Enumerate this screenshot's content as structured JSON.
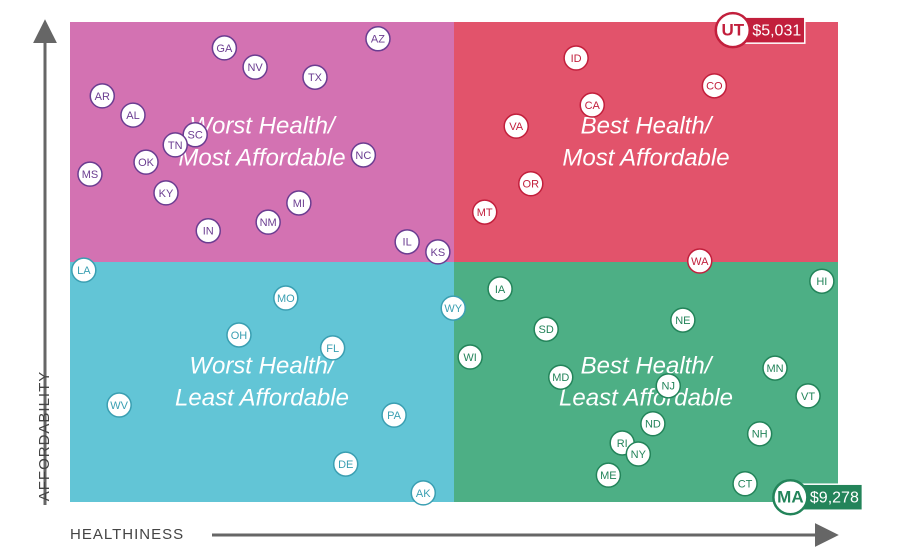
{
  "chart_data": {
    "type": "scatter",
    "x_label": "HEALTHINESS",
    "y_label": "AFFORDABILITY",
    "xlim": [
      0,
      100
    ],
    "ylim": [
      0,
      100
    ],
    "quadrants": [
      {
        "lines": [
          "Worst Health/",
          "Most Affordable"
        ],
        "color": "#d372b2",
        "mark_color": "#6b3d91"
      },
      {
        "lines": [
          "Best Health/",
          "Most Affordable"
        ],
        "color": "#e2536b",
        "mark_color": "#c21f3c"
      },
      {
        "lines": [
          "Worst Health/",
          "Least Affordable"
        ],
        "color": "#62c5d6",
        "mark_color": "#3a9fb2"
      },
      {
        "lines": [
          "Best Health/",
          "Least Affordable"
        ],
        "color": "#4daf85",
        "mark_color": "#23845a"
      }
    ],
    "categories": [
      "GA",
      "NV",
      "AZ",
      "TX",
      "AR",
      "AL",
      "SC",
      "TN",
      "OK",
      "NC",
      "MS",
      "KY",
      "MI",
      "NM",
      "IN",
      "IL",
      "KS",
      "LA",
      "MO",
      "WY",
      "OH",
      "FL",
      "WI",
      "WV",
      "PA",
      "DE",
      "AK",
      "ID",
      "CO",
      "CA",
      "VA",
      "OR",
      "MT",
      "UT",
      "WA",
      "IA",
      "HI",
      "SD",
      "NE",
      "MN",
      "MD",
      "NJ",
      "VT",
      "ND",
      "NH",
      "RI",
      "NY",
      "ME",
      "CT",
      "MA"
    ],
    "x": [
      20.1,
      24.1,
      40.1,
      31.9,
      4.2,
      8.2,
      16.3,
      13.7,
      9.9,
      38.2,
      2.6,
      12.5,
      29.8,
      25.8,
      18.0,
      43.9,
      47.9,
      1.8,
      28.1,
      49.9,
      22.0,
      34.2,
      52.1,
      6.4,
      42.2,
      35.9,
      46.0,
      65.9,
      83.9,
      68.0,
      58.1,
      60.0,
      54.0,
      86.3,
      82.0,
      56.0,
      97.9,
      62.0,
      79.8,
      91.8,
      63.9,
      77.9,
      96.1,
      75.9,
      89.8,
      71.9,
      74.0,
      70.1,
      87.9,
      93.8
    ],
    "values": [
      94.6,
      90.6,
      96.5,
      88.5,
      84.6,
      80.6,
      76.5,
      74.4,
      70.8,
      72.3,
      68.3,
      64.4,
      62.3,
      58.3,
      56.5,
      54.2,
      52.1,
      48.3,
      42.5,
      40.4,
      34.8,
      32.1,
      30.2,
      20.2,
      18.1,
      7.9,
      1.9,
      92.5,
      86.7,
      82.7,
      78.3,
      66.3,
      60.4,
      98.3,
      50.2,
      44.4,
      46.0,
      36.0,
      37.9,
      27.9,
      26.0,
      24.2,
      22.1,
      16.3,
      14.2,
      12.3,
      10.0,
      5.6,
      3.8,
      1.0
    ],
    "value_labels": [
      null,
      null,
      null,
      null,
      null,
      null,
      null,
      null,
      null,
      null,
      null,
      null,
      null,
      null,
      null,
      null,
      null,
      null,
      null,
      null,
      null,
      null,
      null,
      null,
      null,
      null,
      null,
      null,
      null,
      null,
      null,
      null,
      null,
      "$5,031",
      null,
      null,
      null,
      null,
      null,
      null,
      null,
      null,
      null,
      null,
      null,
      null,
      null,
      null,
      null,
      "$9,278"
    ]
  }
}
